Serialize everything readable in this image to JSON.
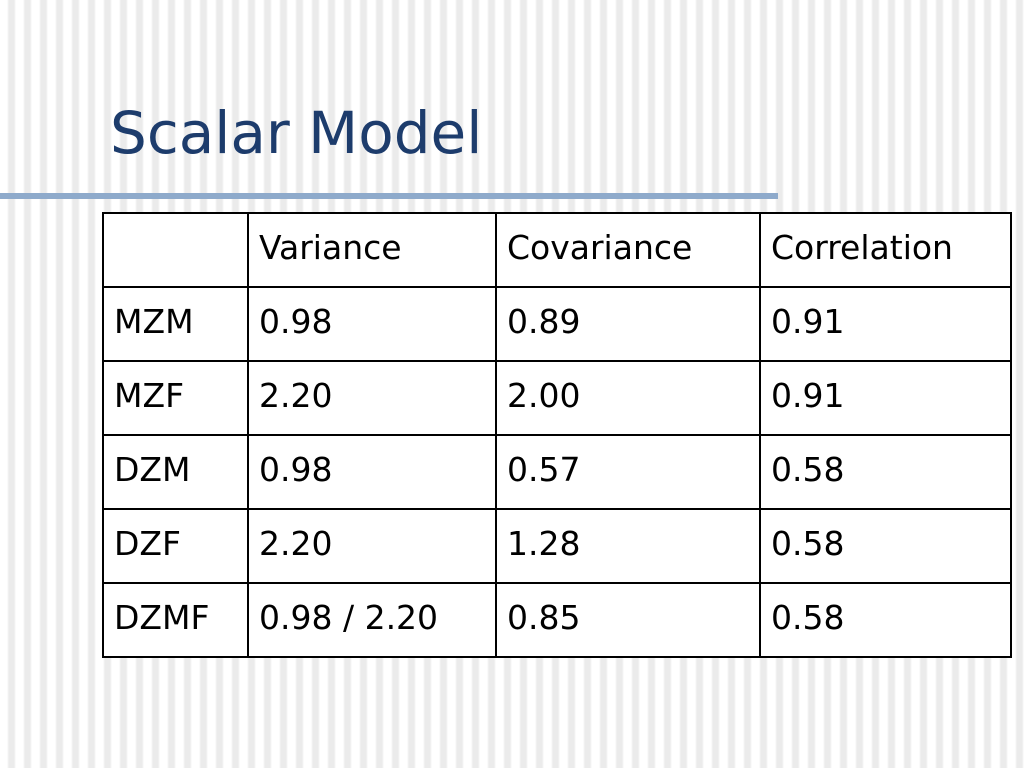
{
  "title": "Scalar Model",
  "table": {
    "header": [
      "Variance",
      "Covariance",
      "Correlation"
    ],
    "rows": [
      [
        "MZM",
        "0.98",
        "0.89",
        "0.91"
      ],
      [
        "MZF",
        "2.20",
        "2.00",
        "0.91"
      ],
      [
        "DZM",
        "0.98",
        "0.57",
        "0.58"
      ],
      [
        "DZF",
        "2.20",
        "1.28",
        "0.58"
      ],
      [
        "DZMF",
        "0.98 / 2.20",
        "0.85",
        "0.58"
      ]
    ]
  }
}
